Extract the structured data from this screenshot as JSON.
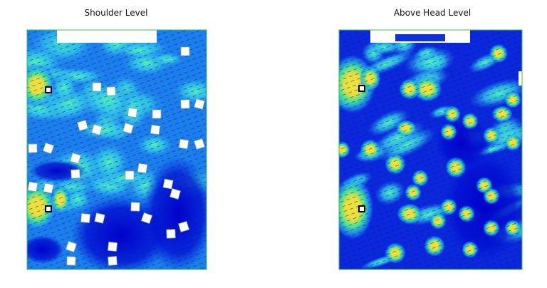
{
  "panels": [
    {
      "title": "Shoulder Level"
    },
    {
      "title": "Above Head Level"
    }
  ]
}
